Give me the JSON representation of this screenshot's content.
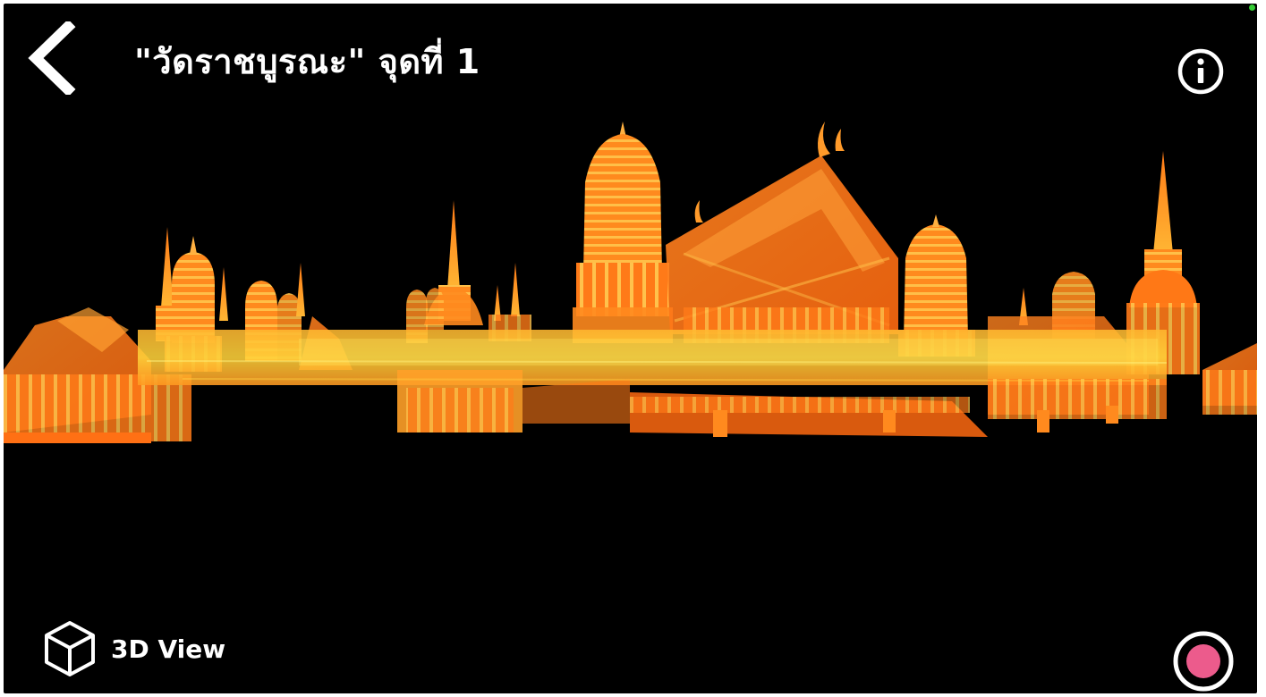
{
  "header": {
    "title": "\"วัดราชบูรณะ\" จุดที่ 1"
  },
  "icons": {
    "back": "chevron-left-icon",
    "info": "info-icon",
    "view_mode": "cube-icon",
    "record": "record-icon"
  },
  "footer": {
    "view_mode_label": "3D View"
  },
  "colors": {
    "background": "#000000",
    "foreground": "#ffffff",
    "model_glow": "#ff8a1c",
    "model_highlight": "#ffd23a",
    "record_fill": "#ec5b8c",
    "status_indicator": "#33cc33"
  }
}
